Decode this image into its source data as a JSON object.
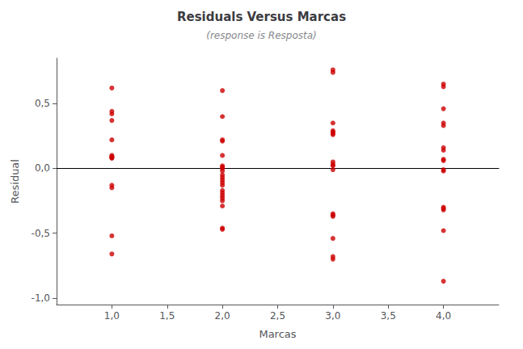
{
  "chart_data": {
    "type": "scatter",
    "title": "Residuals Versus Marcas",
    "subtitle": "(response is Resposta)",
    "xlabel": "Marcas",
    "ylabel": "Residual",
    "color": "#cc0000",
    "x": [
      1,
      1,
      1,
      1,
      1,
      1,
      1,
      1,
      1,
      1,
      1,
      1,
      1,
      1,
      2,
      2,
      2,
      2,
      2,
      2,
      2,
      2,
      2,
      2,
      2,
      2,
      2,
      2,
      2,
      2,
      2,
      2,
      2,
      2,
      2,
      2,
      3,
      3,
      3,
      3,
      3,
      3,
      3,
      3,
      3,
      3,
      3,
      3,
      3,
      3,
      3,
      3,
      3,
      4,
      4,
      4,
      4,
      4,
      4,
      4,
      4,
      4,
      4,
      4,
      4,
      4,
      4,
      4,
      4
    ],
    "values": [
      0.62,
      0.44,
      0.42,
      0.37,
      0.22,
      0.1,
      0.09,
      0.09,
      0.08,
      0.08,
      -0.13,
      -0.15,
      -0.52,
      -0.66,
      0.6,
      0.4,
      0.22,
      0.21,
      0.1,
      0.02,
      0.01,
      0.0,
      -0.02,
      -0.05,
      -0.07,
      -0.09,
      -0.11,
      -0.13,
      -0.17,
      -0.19,
      -0.21,
      -0.23,
      -0.25,
      -0.29,
      -0.46,
      -0.47,
      0.76,
      0.74,
      0.35,
      0.29,
      0.28,
      0.27,
      0.26,
      0.05,
      0.03,
      0.02,
      -0.01,
      -0.35,
      -0.36,
      -0.37,
      -0.54,
      -0.68,
      -0.7,
      0.65,
      0.63,
      0.46,
      0.35,
      0.33,
      0.16,
      0.14,
      0.07,
      0.06,
      -0.01,
      -0.02,
      -0.3,
      -0.31,
      -0.32,
      -0.48,
      -0.87
    ],
    "xlim": [
      0.5,
      4.5
    ],
    "ylim": [
      -1.05,
      0.85
    ],
    "xticks": [
      {
        "value": 1.0,
        "label": "1,0"
      },
      {
        "value": 1.5,
        "label": "1,5"
      },
      {
        "value": 2.0,
        "label": "2,0"
      },
      {
        "value": 2.5,
        "label": "2,5"
      },
      {
        "value": 3.0,
        "label": "3,0"
      },
      {
        "value": 3.5,
        "label": "3,5"
      },
      {
        "value": 4.0,
        "label": "4,0"
      }
    ],
    "yticks": [
      {
        "value": -1.0,
        "label": "-1,0"
      },
      {
        "value": -0.5,
        "label": "-0,5"
      },
      {
        "value": 0.0,
        "label": "0,0"
      },
      {
        "value": 0.5,
        "label": "0,5"
      }
    ],
    "grid": false
  }
}
